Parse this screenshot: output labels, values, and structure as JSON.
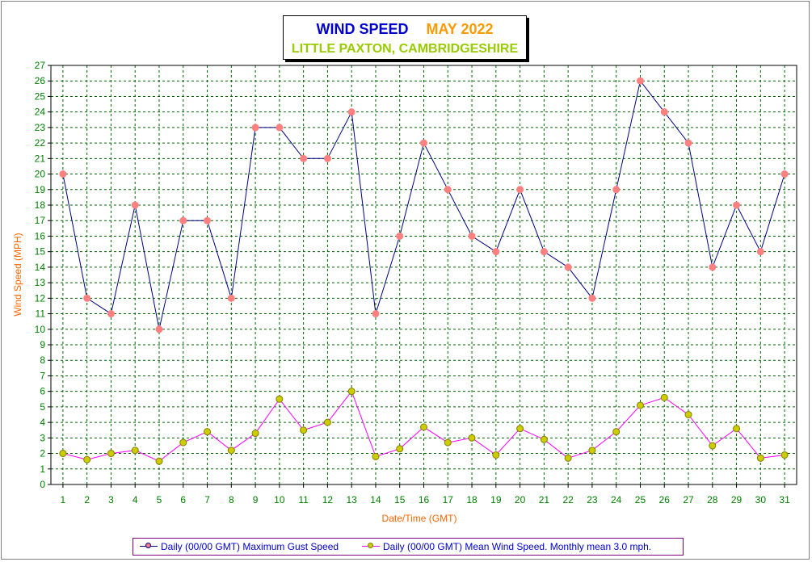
{
  "title": {
    "main": "WIND SPEED",
    "date": "MAY 2022",
    "location": "LITTLE PAXTON, CAMBRIDGESHIRE"
  },
  "colors": {
    "gust_line": "#000080",
    "gust_marker": "#ff8080",
    "mean_line": "#ff00ff",
    "mean_marker": "#cccc00",
    "grid": "#006600",
    "tick_labels": "#008000",
    "axis_titles": "#ff6600",
    "title_main": "#0000cc",
    "title_date": "#ff9900",
    "title_location": "#99cc00"
  },
  "legend": {
    "gust": "Daily (00/00 GMT) Maximum Gust Speed",
    "mean": "Daily (00/00 GMT) Mean Wind Speed. Monthly mean 3.0 mph."
  },
  "chart_data": {
    "type": "line",
    "xlabel": "Date/Time (GMT)",
    "ylabel": "Wind Speed (MPH)",
    "ylim": [
      0,
      27
    ],
    "y_ticks": [
      0,
      1,
      2,
      3,
      4,
      5,
      6,
      7,
      8,
      9,
      10,
      11,
      12,
      13,
      14,
      15,
      16,
      17,
      18,
      19,
      20,
      21,
      22,
      23,
      24,
      25,
      26,
      27
    ],
    "grid": true,
    "legend_position": "bottom",
    "x": [
      1,
      2,
      3,
      4,
      5,
      6,
      7,
      8,
      9,
      10,
      11,
      12,
      13,
      14,
      15,
      16,
      17,
      18,
      19,
      20,
      21,
      22,
      23,
      24,
      25,
      26,
      27,
      28,
      29,
      30,
      31
    ],
    "series": [
      {
        "name": "Daily (00/00 GMT) Maximum Gust Speed",
        "values": [
          20,
          12,
          11,
          18,
          10,
          17,
          17,
          12,
          23,
          23,
          21,
          21,
          24,
          11,
          16,
          22,
          19,
          16,
          15,
          19,
          15,
          14,
          12,
          19,
          26,
          24,
          22,
          14,
          18,
          15,
          20
        ]
      },
      {
        "name": "Daily (00/00 GMT) Mean Wind Speed. Monthly mean 3.0 mph.",
        "values": [
          2.0,
          1.6,
          2.0,
          2.2,
          1.5,
          2.7,
          3.4,
          2.2,
          3.3,
          5.5,
          3.5,
          4.0,
          6.0,
          1.8,
          2.3,
          3.7,
          2.7,
          3.0,
          1.9,
          3.6,
          2.9,
          1.7,
          2.2,
          3.4,
          5.1,
          5.6,
          4.5,
          2.5,
          3.6,
          1.7,
          1.9
        ]
      }
    ]
  }
}
